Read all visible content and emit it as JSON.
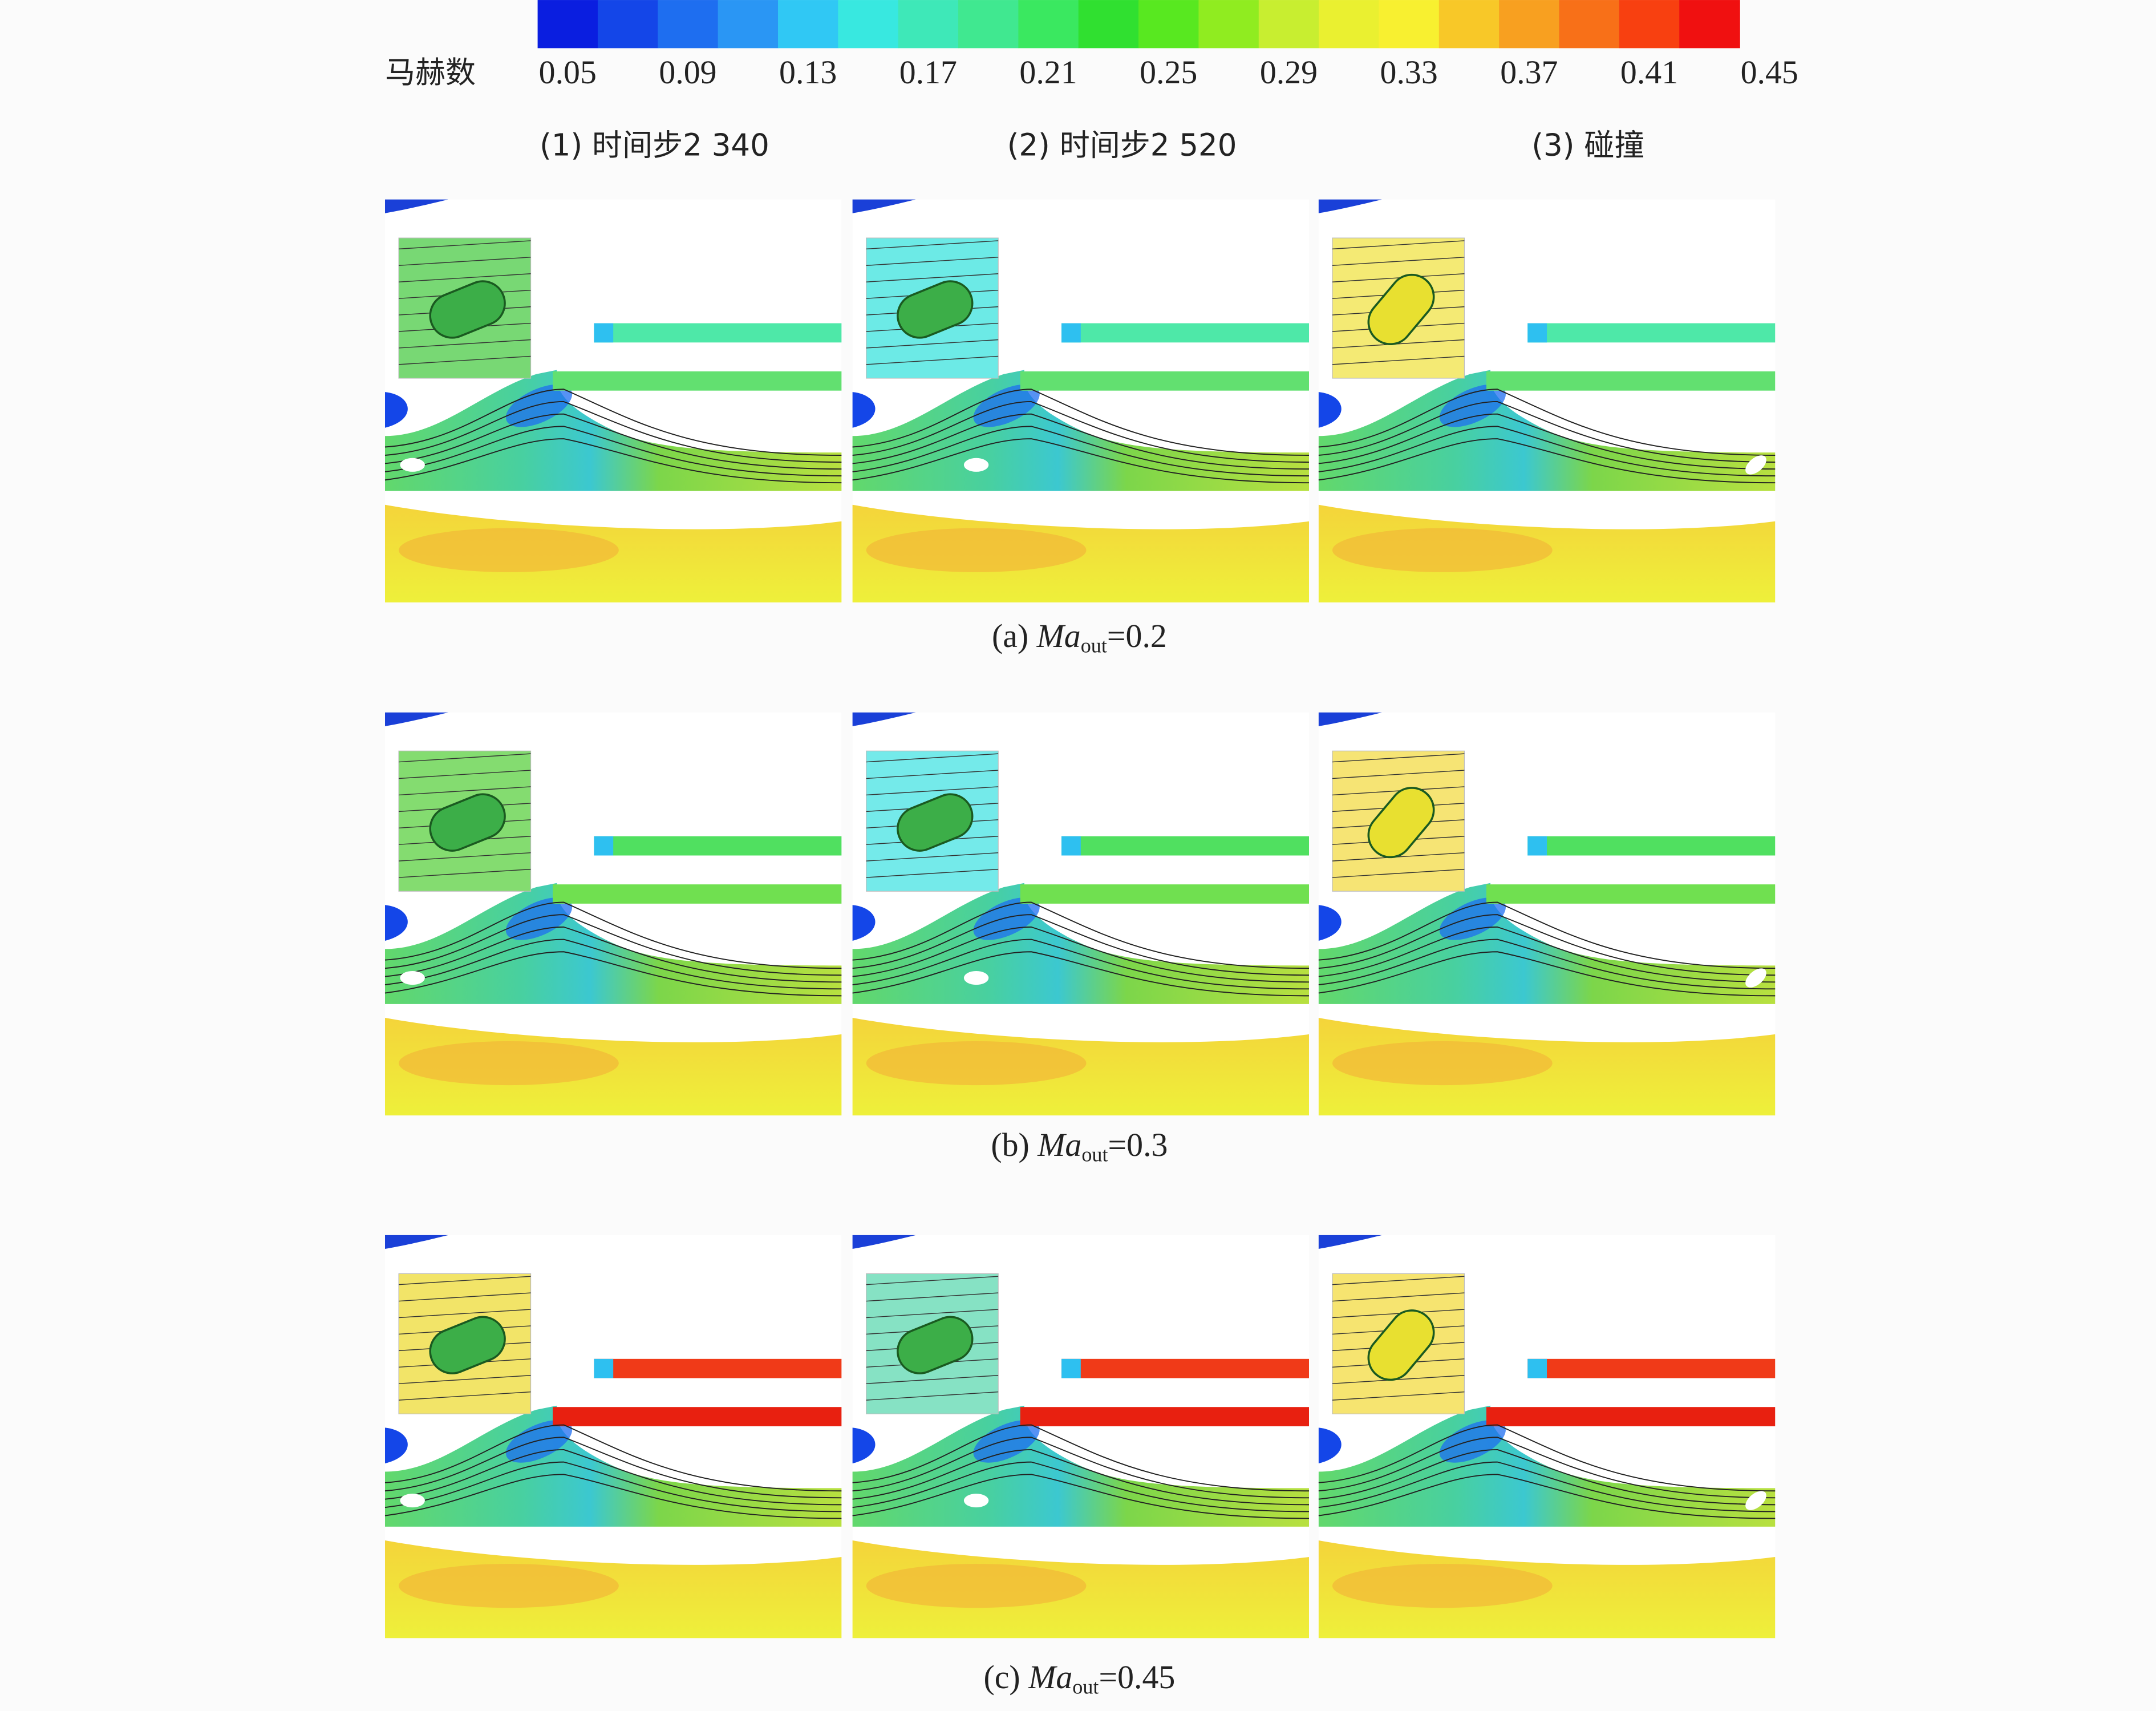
{
  "colorbar": {
    "label": "马赫数",
    "ticks": [
      0.05,
      0.09,
      0.13,
      0.17,
      0.21,
      0.25,
      0.29,
      0.33,
      0.37,
      0.41,
      0.45
    ]
  },
  "columns": [
    "(1) 时间步2 340",
    "(2) 时间步2 520",
    "(3) 碰撞"
  ],
  "rows": [
    {
      "label": "(a)",
      "variable": "Ma",
      "subscript": "out",
      "value": "=0.2"
    },
    {
      "label": "(b)",
      "variable": "Ma",
      "subscript": "out",
      "value": "=0.3"
    },
    {
      "label": "(c)",
      "variable": "Ma",
      "subscript": "out",
      "value": "=0.45"
    }
  ]
}
